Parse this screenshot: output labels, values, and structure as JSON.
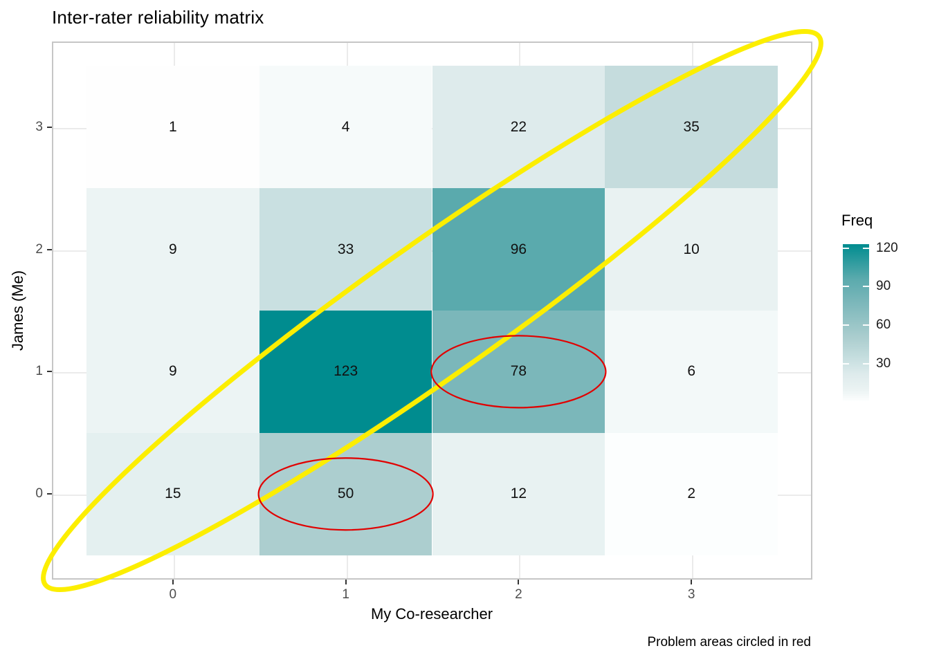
{
  "title": "Inter-rater reliability matrix",
  "caption": "Problem areas circled in red",
  "chart_data": {
    "type": "heatmap",
    "title": "Inter-rater reliability matrix",
    "xlabel": "My Co-researcher",
    "ylabel": "James (Me)",
    "x_ticks": [
      0,
      1,
      2,
      3
    ],
    "y_ticks": [
      0,
      1,
      2,
      3
    ],
    "x_range": [
      -0.7,
      3.7
    ],
    "y_range": [
      -0.7,
      3.7
    ],
    "tile_extent": 0.5,
    "grid": true,
    "cells": [
      {
        "x": 0,
        "y": 3,
        "value": 1,
        "color": "#fefefe"
      },
      {
        "x": 1,
        "y": 3,
        "value": 4,
        "color": "#f6fafa"
      },
      {
        "x": 2,
        "y": 3,
        "value": 22,
        "color": "#deebec"
      },
      {
        "x": 3,
        "y": 3,
        "value": 35,
        "color": "#c5dcdd"
      },
      {
        "x": 0,
        "y": 2,
        "value": 9,
        "color": "#ecf4f4"
      },
      {
        "x": 1,
        "y": 2,
        "value": 33,
        "color": "#c9e0e1"
      },
      {
        "x": 2,
        "y": 2,
        "value": 96,
        "color": "#5aaaad"
      },
      {
        "x": 3,
        "y": 2,
        "value": 10,
        "color": "#e9f2f2"
      },
      {
        "x": 0,
        "y": 1,
        "value": 9,
        "color": "#ecf4f4"
      },
      {
        "x": 1,
        "y": 1,
        "value": 123,
        "color": "#008c8f"
      },
      {
        "x": 2,
        "y": 1,
        "value": 78,
        "color": "#7bb7ba"
      },
      {
        "x": 3,
        "y": 1,
        "value": 6,
        "color": "#f3f9f9"
      },
      {
        "x": 0,
        "y": 0,
        "value": 15,
        "color": "#e4f0f0"
      },
      {
        "x": 1,
        "y": 0,
        "value": 50,
        "color": "#accecf"
      },
      {
        "x": 2,
        "y": 0,
        "value": 12,
        "color": "#e8f2f2"
      },
      {
        "x": 3,
        "y": 0,
        "value": 2,
        "color": "#fcfefe"
      }
    ],
    "legend": {
      "title": "Freq",
      "position": "right",
      "min": 1,
      "max": 123,
      "ticks": [
        120,
        90,
        60,
        30
      ],
      "gradient_stops": [
        {
          "pos": 0,
          "color": "#008c8f"
        },
        {
          "pos": 22,
          "color": "#5aaaad"
        },
        {
          "pos": 37,
          "color": "#7bb7ba"
        },
        {
          "pos": 60,
          "color": "#accecf"
        },
        {
          "pos": 74,
          "color": "#c9e0e1"
        },
        {
          "pos": 83,
          "color": "#deebec"
        },
        {
          "pos": 93,
          "color": "#ebf3f3"
        },
        {
          "pos": 100,
          "color": "#fdfefe"
        }
      ]
    },
    "annotations": {
      "diagonal_ellipse": {
        "color": "#fcee00",
        "center": {
          "x": 1.5,
          "y": 1.5
        },
        "span_from": "bottom-left-corner",
        "span_to": "top-right-corner"
      },
      "problem_ellipses": {
        "color": "#e10000",
        "cells": [
          {
            "x": 2,
            "y": 1,
            "value": 78
          },
          {
            "x": 1,
            "y": 0,
            "value": 50
          }
        ]
      },
      "note": "Problem areas circled in red"
    }
  }
}
